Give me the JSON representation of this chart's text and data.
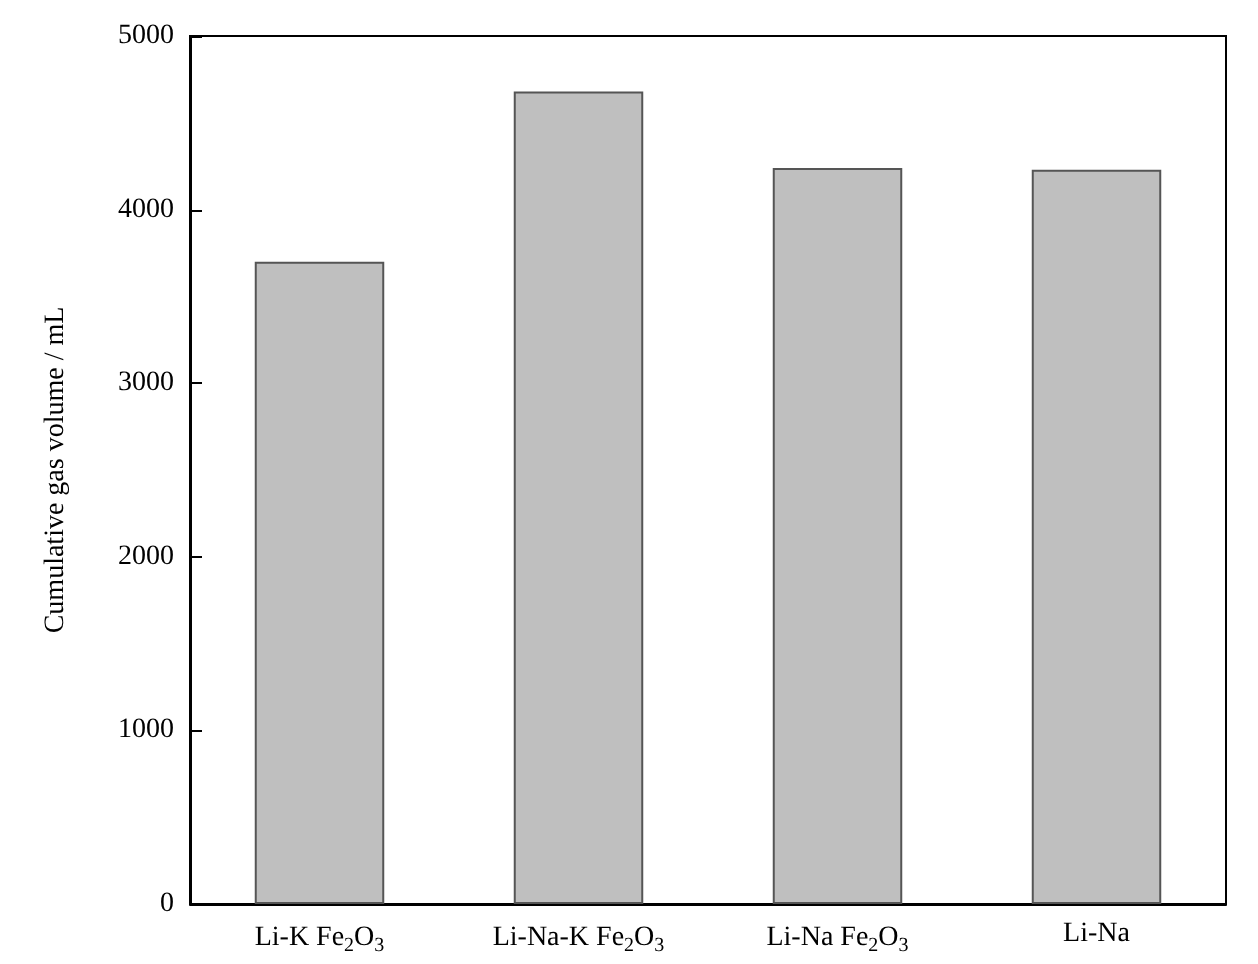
{
  "chart_data": {
    "type": "bar",
    "ylabel": "Cumulative gas volume / mL",
    "categories": [
      "Li-K Fe$_{2}$O$_{3}$",
      "Li-Na-K Fe$_{2}$O$_{3}$",
      "Li-Na Fe$_{2}$O$_{3}$",
      "Li-Na"
    ],
    "values": [
      3700,
      4680,
      4240,
      4230
    ],
    "color": "#bfbfbf",
    "ylim": [
      0,
      5000
    ],
    "yticks": [
      0,
      1000,
      2000,
      3000,
      4000,
      5000
    ],
    "grid": false
  }
}
